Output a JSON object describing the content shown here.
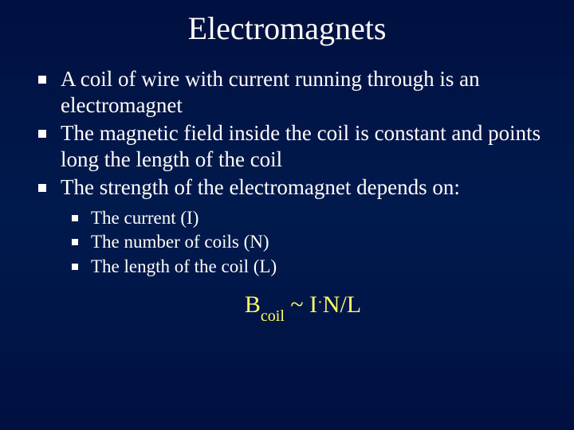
{
  "slide": {
    "title": "Electromagnets",
    "bullets": [
      {
        "text": "A coil of wire with current running through is an electromagnet"
      },
      {
        "text": "The magnetic field inside the coil is constant and points long the length of the coil"
      },
      {
        "text": "The strength of the electromagnet depends on:"
      }
    ],
    "sub_bullets": [
      {
        "text": "The current (I)"
      },
      {
        "text": "The number of coils (N)"
      },
      {
        "text": "The length of the coil (L)"
      }
    ],
    "formula": {
      "lhs": "B",
      "sub": "coil",
      "tilde": " ~ ",
      "rhs1": "I",
      "dot": "·",
      "rhs2": "N/L"
    },
    "colors": {
      "background": "#001a4d",
      "text": "#ffffff",
      "formula": "#ffff66",
      "bullet": "#ffffff"
    },
    "fonts": {
      "title_size_pt": 40,
      "body_size_pt": 27,
      "sub_size_pt": 23,
      "formula_size_pt": 30,
      "family": "Times New Roman"
    }
  }
}
